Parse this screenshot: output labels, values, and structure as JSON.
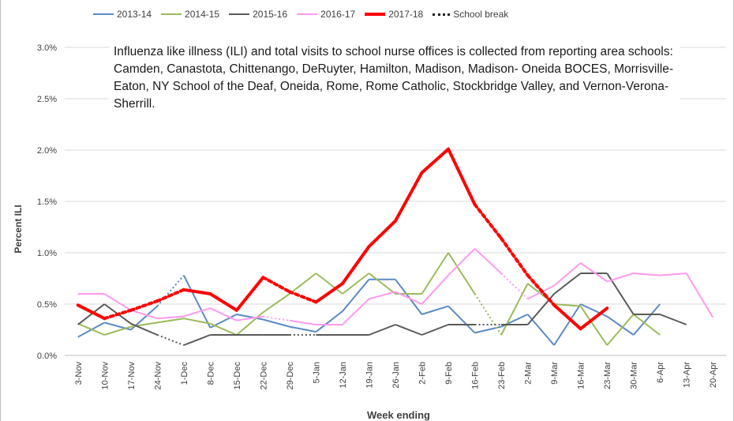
{
  "chart_data": {
    "type": "line",
    "xlabel": "Week ending",
    "ylabel": "Percent ILI",
    "ylim": [
      0,
      0.03
    ],
    "yticks": [
      "0.0%",
      "0.5%",
      "1.0%",
      "1.5%",
      "2.0%",
      "2.5%",
      "3.0%"
    ],
    "categories": [
      "3-Nov",
      "10-Nov",
      "17-Nov",
      "24-Nov",
      "1-Dec",
      "8-Dec",
      "15-Dec",
      "22-Dec",
      "29-Dec",
      "5-Jan",
      "12-Jan",
      "19-Jan",
      "26-Jan",
      "2-Feb",
      "9-Feb",
      "16-Feb",
      "23-Feb",
      "2-Mar",
      "9-Mar",
      "16-Mar",
      "23-Mar",
      "30-Mar",
      "6-Apr",
      "13-Apr",
      "20-Apr"
    ],
    "grid": "horizontal",
    "legend_position": "top",
    "annotation": "Influenza like illness (ILI) and total visits to school nurse offices is collected from reporting area schools: Camden, Canastota, Chittenango, DeRuyter, Hamilton, Madison, Madison- Oneida BOCES, Morrisville-Eaton, NY School of the Deaf, Oneida, Rome, Rome Catholic, Stockbridge Valley, and Vernon-Verona-Sherrill.",
    "legend_extra": "School break",
    "series": [
      {
        "name": "2013-14",
        "color": "#5b8ac5",
        "values": [
          0.0018,
          0.0032,
          0.0025,
          0.0048,
          0.0078,
          0.0027,
          0.004,
          0.0035,
          0.0028,
          0.0023,
          0.0043,
          0.0074,
          0.0074,
          0.004,
          0.0048,
          0.0022,
          0.0028,
          0.004,
          0.001,
          0.005,
          0.0038,
          0.002,
          0.005,
          null,
          null
        ],
        "break_segments": [
          [
            3,
            4
          ]
        ]
      },
      {
        "name": "2014-15",
        "color": "#9bbb59",
        "values": [
          0.0031,
          0.002,
          0.0028,
          0.0032,
          0.0036,
          0.0031,
          0.002,
          0.0042,
          0.006,
          0.008,
          0.006,
          0.008,
          0.006,
          0.006,
          0.01,
          0.006,
          0.002,
          0.007,
          0.005,
          0.0048,
          0.001,
          0.004,
          0.002,
          null,
          null
        ],
        "break_segments": [
          [
            15,
            16
          ]
        ]
      },
      {
        "name": "2015-16",
        "color": "#595959",
        "values": [
          0.003,
          0.005,
          0.0031,
          0.002,
          0.001,
          0.002,
          0.002,
          0.002,
          0.002,
          0.002,
          0.002,
          0.002,
          0.003,
          0.002,
          0.003,
          0.003,
          0.003,
          0.003,
          0.006,
          0.008,
          0.008,
          0.004,
          0.004,
          0.003,
          null
        ],
        "break_segments": [
          [
            3,
            4
          ],
          [
            8,
            9
          ],
          [
            15,
            16
          ]
        ]
      },
      {
        "name": "2016-17",
        "color": "#ff99ee",
        "values": [
          0.006,
          0.006,
          0.0044,
          0.0036,
          0.0038,
          0.0046,
          0.0034,
          0.0038,
          0.0034,
          0.003,
          0.003,
          0.0055,
          0.0062,
          0.005,
          0.0078,
          0.0104,
          0.008,
          0.0055,
          0.0068,
          0.009,
          0.0072,
          0.008,
          0.0078,
          0.008,
          0.0037
        ],
        "break_segments": [
          [
            7,
            8
          ],
          [
            16,
            17
          ]
        ]
      },
      {
        "name": "2017-18",
        "color": "#ff0000",
        "values": [
          0.0049,
          0.0036,
          0.0044,
          0.0053,
          0.0064,
          0.006,
          0.0044,
          0.0076,
          0.0062,
          0.0052,
          0.007,
          0.0106,
          0.0131,
          0.0178,
          0.0201,
          0.0147,
          0.0114,
          0.0078,
          0.0049,
          0.0026,
          0.0046,
          null,
          null,
          null,
          null
        ],
        "break_segments": [
          [
            1,
            2
          ],
          [
            2,
            3
          ],
          [
            3,
            4
          ],
          [
            7,
            8
          ],
          [
            8,
            9
          ],
          [
            15,
            16
          ],
          [
            16,
            17
          ],
          [
            17,
            18
          ]
        ]
      }
    ]
  }
}
